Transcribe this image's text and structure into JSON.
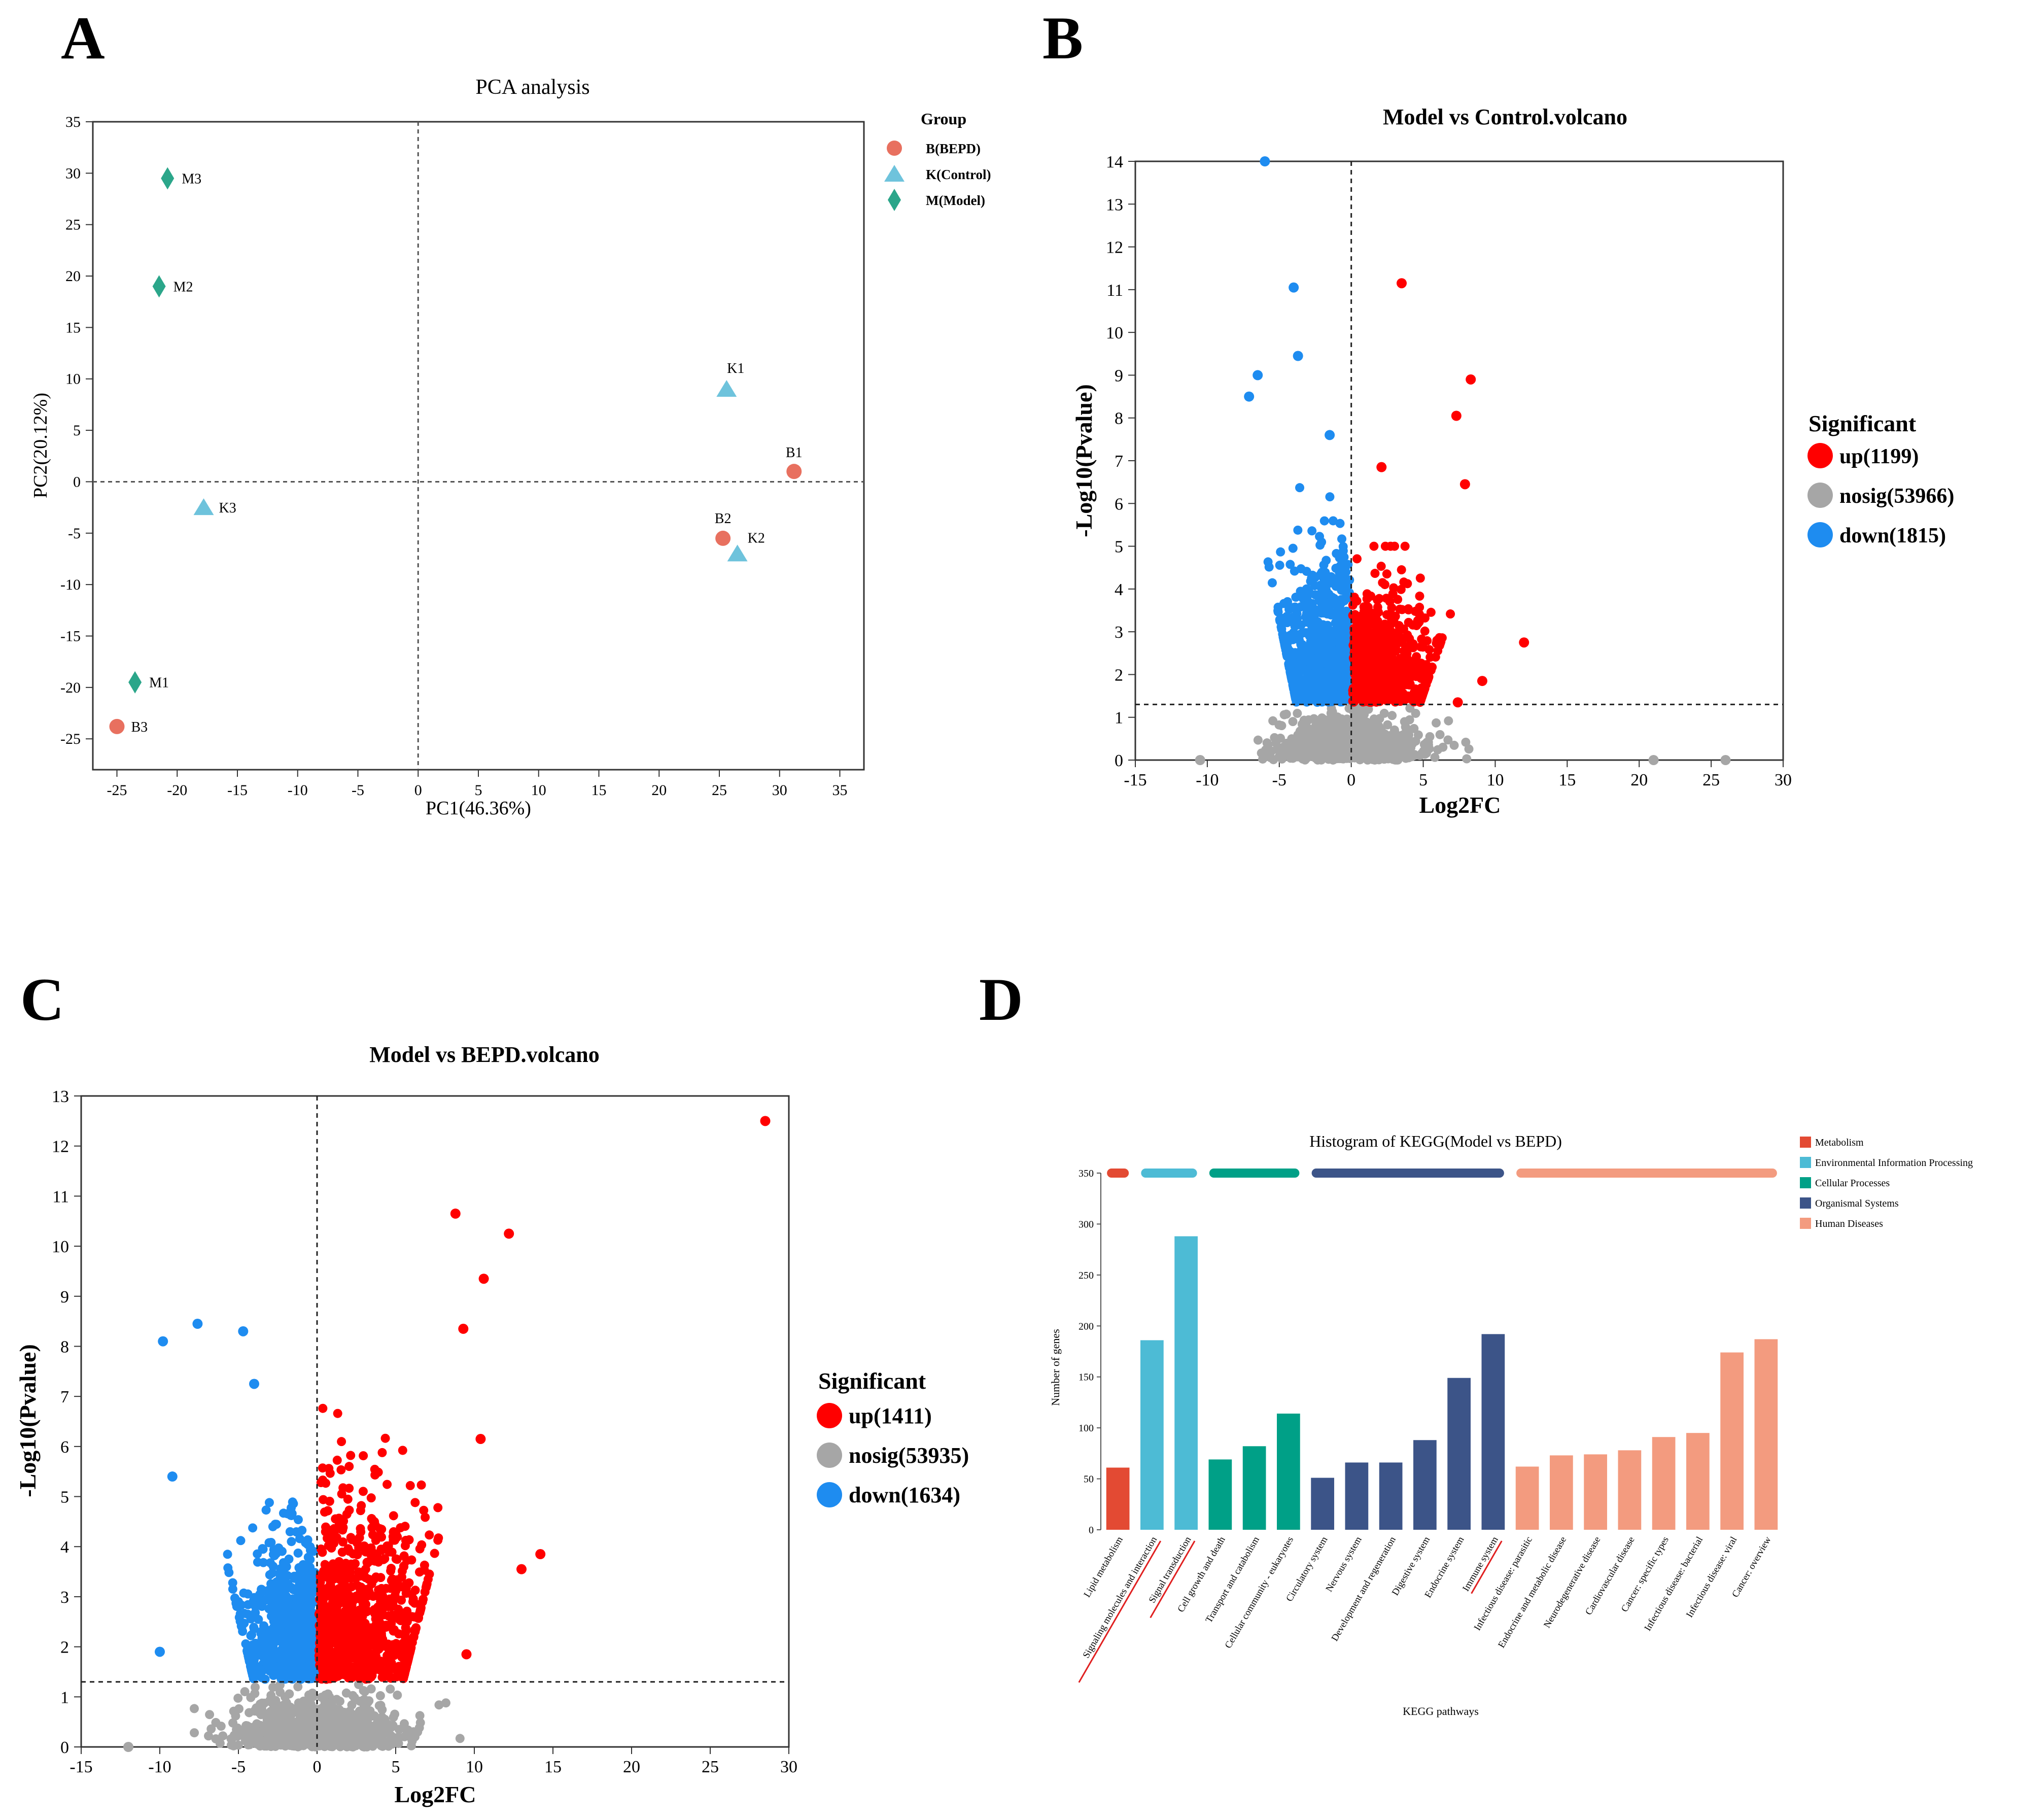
{
  "panels": {
    "a": "A",
    "b": "B",
    "c": "C",
    "d": "D"
  },
  "colors": {
    "bepd": "#E8705F",
    "control": "#6EC3DC",
    "model": "#2BA68A",
    "up": "#FF0000",
    "nosig": "#A6A6A6",
    "down": "#1E8CF0",
    "metabolism": "#E34A33",
    "env_info": "#4DBBD5",
    "cellular": "#00A087",
    "organismal": "#3C5488",
    "human_disease": "#F39B7F",
    "highlight_line": "#E02020"
  },
  "chart_data": [
    {
      "id": "pca",
      "type": "scatter",
      "title": "PCA analysis",
      "xlabel": "PC1(46.36%)",
      "ylabel": "PC2(20.12%)",
      "xlim": [
        -27,
        37
      ],
      "ylim": [
        -28,
        35
      ],
      "xticks": [
        -25,
        -20,
        -15,
        -10,
        -5,
        0,
        5,
        10,
        15,
        20,
        25,
        30,
        35
      ],
      "yticks": [
        -25,
        -20,
        -15,
        -10,
        -5,
        0,
        5,
        10,
        15,
        20,
        25,
        30,
        35
      ],
      "legend_title": "Group",
      "legend_position": "right",
      "series": [
        {
          "name": "B(BEPD)",
          "marker": "circle",
          "color": "#E8705F",
          "points": [
            {
              "label": "B1",
              "x": 31.2,
              "y": 1.0
            },
            {
              "label": "B2",
              "x": 25.3,
              "y": -5.5
            },
            {
              "label": "B3",
              "x": -25.0,
              "y": -23.8
            }
          ]
        },
        {
          "name": "K(Control)",
          "marker": "triangle",
          "color": "#6EC3DC",
          "points": [
            {
              "label": "K1",
              "x": 25.6,
              "y": 9.0
            },
            {
              "label": "K2",
              "x": 26.5,
              "y": -7.0
            },
            {
              "label": "K3",
              "x": -17.8,
              "y": -2.5
            }
          ]
        },
        {
          "name": "M(Model)",
          "marker": "diamond",
          "color": "#2BA68A",
          "points": [
            {
              "label": "M1",
              "x": -23.5,
              "y": -19.5
            },
            {
              "label": "M2",
              "x": -21.5,
              "y": 19.0
            },
            {
              "label": "M3",
              "x": -20.8,
              "y": 29.5
            }
          ]
        }
      ]
    },
    {
      "id": "volcano_control",
      "type": "scatter",
      "title": "Model vs Control.volcano",
      "xlabel": "Log2FC",
      "ylabel": "-Log10(Pvalue)",
      "xlim": [
        -15,
        30
      ],
      "ylim": [
        0,
        14
      ],
      "xticks": [
        -15,
        -10,
        -5,
        0,
        5,
        10,
        15,
        20,
        25,
        30
      ],
      "yticks": [
        0,
        1,
        2,
        3,
        4,
        5,
        6,
        7,
        8,
        9,
        10,
        11,
        12,
        13,
        14
      ],
      "threshold_y": 1.3,
      "legend_title": "Significant",
      "legend_position": "right",
      "legend": [
        {
          "label": "up(1199)",
          "color": "#FF0000"
        },
        {
          "label": "nosig(53966)",
          "color": "#A6A6A6"
        },
        {
          "label": "down(1815)",
          "color": "#1E8CF0"
        }
      ],
      "counts": {
        "up": 1199,
        "nosig": 53966,
        "down": 1815
      },
      "extreme_points": [
        {
          "x": -6.0,
          "y": 14.0,
          "group": "down"
        },
        {
          "x": -4.0,
          "y": 11.05,
          "group": "down"
        },
        {
          "x": -3.7,
          "y": 9.45,
          "group": "down"
        },
        {
          "x": -6.5,
          "y": 9.0,
          "group": "down"
        },
        {
          "x": -7.1,
          "y": 8.5,
          "group": "down"
        },
        {
          "x": -1.5,
          "y": 7.6,
          "group": "down"
        },
        {
          "x": 3.5,
          "y": 11.15,
          "group": "up"
        },
        {
          "x": 8.3,
          "y": 8.9,
          "group": "up"
        },
        {
          "x": 7.3,
          "y": 8.05,
          "group": "up"
        },
        {
          "x": 2.1,
          "y": 6.85,
          "group": "up"
        },
        {
          "x": 7.9,
          "y": 6.45,
          "group": "up"
        },
        {
          "x": 12.0,
          "y": 2.75,
          "group": "up"
        },
        {
          "x": 9.1,
          "y": 1.85,
          "group": "up"
        },
        {
          "x": 7.4,
          "y": 1.35,
          "group": "up"
        },
        {
          "x": -10.5,
          "y": 0.0,
          "group": "nosig"
        },
        {
          "x": 21.0,
          "y": 0.0,
          "group": "nosig"
        },
        {
          "x": 26.0,
          "y": 0.0,
          "group": "nosig"
        }
      ]
    },
    {
      "id": "volcano_bepd",
      "type": "scatter",
      "title": "Model vs BEPD.volcano",
      "xlabel": "Log2FC",
      "ylabel": "-Log10(Pvalue)",
      "xlim": [
        -15,
        30
      ],
      "ylim": [
        0,
        13
      ],
      "xticks": [
        -15,
        -10,
        -5,
        0,
        5,
        10,
        15,
        20,
        25,
        30
      ],
      "yticks": [
        0,
        1,
        2,
        3,
        4,
        5,
        6,
        7,
        8,
        9,
        10,
        11,
        12,
        13
      ],
      "threshold_y": 1.3,
      "legend_title": "Significant",
      "legend_position": "right",
      "legend": [
        {
          "label": "up(1411)",
          "color": "#FF0000"
        },
        {
          "label": "nosig(53935)",
          "color": "#A6A6A6"
        },
        {
          "label": "down(1634)",
          "color": "#1E8CF0"
        }
      ],
      "counts": {
        "up": 1411,
        "nosig": 53935,
        "down": 1634
      },
      "extreme_points": [
        {
          "x": 28.5,
          "y": 12.5,
          "group": "up"
        },
        {
          "x": 8.8,
          "y": 10.65,
          "group": "up"
        },
        {
          "x": 9.3,
          "y": 8.35,
          "group": "up"
        },
        {
          "x": 12.2,
          "y": 10.25,
          "group": "up"
        },
        {
          "x": 10.6,
          "y": 9.35,
          "group": "up"
        },
        {
          "x": 10.4,
          "y": 6.15,
          "group": "up"
        },
        {
          "x": 14.2,
          "y": 3.85,
          "group": "up"
        },
        {
          "x": 13.0,
          "y": 3.55,
          "group": "up"
        },
        {
          "x": 9.5,
          "y": 1.85,
          "group": "up"
        },
        {
          "x": -9.8,
          "y": 8.1,
          "group": "down"
        },
        {
          "x": -7.6,
          "y": 8.45,
          "group": "down"
        },
        {
          "x": -4.7,
          "y": 8.3,
          "group": "down"
        },
        {
          "x": -4.0,
          "y": 7.25,
          "group": "down"
        },
        {
          "x": -9.2,
          "y": 5.4,
          "group": "down"
        },
        {
          "x": -10.0,
          "y": 1.9,
          "group": "down"
        },
        {
          "x": -12.0,
          "y": 0.0,
          "group": "nosig"
        }
      ]
    },
    {
      "id": "kegg",
      "type": "bar",
      "title": "Histogram of KEGG(Model vs BEPD)",
      "xlabel": "KEGG pathways",
      "ylabel": "Number of genes",
      "ylim": [
        0,
        350
      ],
      "yticks": [
        0,
        50,
        100,
        150,
        200,
        250,
        300,
        350
      ],
      "legend_position": "top-right",
      "classes": [
        {
          "name": "Metabolism",
          "color": "#E34A33"
        },
        {
          "name": "Environmental Information Processing",
          "color": "#4DBBD5"
        },
        {
          "name": "Cellular Processes",
          "color": "#00A087"
        },
        {
          "name": "Organismal Systems",
          "color": "#3C5488"
        },
        {
          "name": "Human Diseases",
          "color": "#F39B7F"
        }
      ],
      "categories": [
        "Lipid metabolism",
        "Signaling molecules and interaction",
        "Signal transduction",
        "Cell growth and death",
        "Transport and catabolism",
        "Cellular community - eukaryotes",
        "Circulatory system",
        "Nervous system",
        "Development and regeneration",
        "Digestive system",
        "Endocrine system",
        "Immune system",
        "Infectious disease: parasitic",
        "Endocrine and metabolic disease",
        "Neurodegenerative disease",
        "Cardiovascular disease",
        "Cancer: specific types",
        "Infectious disease: bacterial",
        "Infectious disease: viral",
        "Cancer: overview"
      ],
      "category_class": [
        0,
        1,
        1,
        2,
        2,
        2,
        3,
        3,
        3,
        3,
        3,
        3,
        4,
        4,
        4,
        4,
        4,
        4,
        4,
        4
      ],
      "values": [
        61,
        186,
        288,
        69,
        82,
        114,
        51,
        66,
        66,
        88,
        149,
        192,
        62,
        73,
        74,
        78,
        91,
        95,
        174,
        187
      ],
      "underlined": [
        "Signaling molecules and interaction",
        "Signal transduction",
        "Immune system"
      ]
    }
  ]
}
